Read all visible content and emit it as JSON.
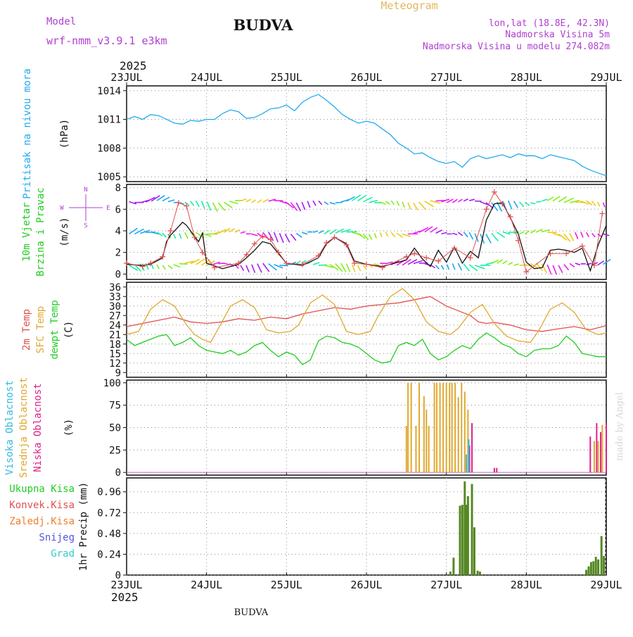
{
  "header": {
    "model_label": "Model",
    "model_name": "wrf-nmm_v3.9.1  e3km",
    "station": "BUDVA",
    "product": "Meteogram",
    "coords": "lon,lat (18.8E, 42.3N)",
    "elevation": "Nadmorska Visina 5m",
    "model_elevation": "Nadmorska Visina u modelu 274.082m",
    "footer_station": "BUDVA",
    "credit": "made by Angel"
  },
  "colors": {
    "pressure": "#22aaee",
    "wind_label": "#22cc22",
    "temp2m": "#e05050",
    "sfc": "#e0a830",
    "dewpt": "#22cc22",
    "high_cloud": "#33bbdd",
    "mid_cloud": "#e0a830",
    "low_cloud": "#dd2288",
    "total_precip": "#558822",
    "purple": "#b040d0"
  },
  "chart_data": {
    "type": "line",
    "time_axis": {
      "year": "2025",
      "ticks": [
        "23JUL",
        "24JUL",
        "25JUL",
        "26JUL",
        "27JUL",
        "28JUL",
        "29JUL"
      ],
      "unit": "days since 23JUL 00UTC"
    },
    "panels": [
      {
        "id": "pressure",
        "labels": [
          "Pritisak na nivou mora"
        ],
        "unit": "(hPa)",
        "ylim": [
          1004.5,
          1014.5
        ],
        "yticks": [
          1005,
          1008,
          1011,
          1014
        ],
        "series": [
          {
            "name": "mslp",
            "x": [
              0,
              0.1,
              0.2,
              0.3,
              0.4,
              0.5,
              0.6,
              0.7,
              0.8,
              0.9,
              1,
              1.1,
              1.2,
              1.3,
              1.4,
              1.5,
              1.6,
              1.7,
              1.8,
              1.9,
              2,
              2.1,
              2.2,
              2.3,
              2.4,
              2.5,
              2.6,
              2.7,
              2.8,
              2.9,
              3,
              3.1,
              3.2,
              3.3,
              3.4,
              3.5,
              3.6,
              3.7,
              3.8,
              3.9,
              4,
              4.1,
              4.2,
              4.3,
              4.4,
              4.5,
              4.6,
              4.7,
              4.8,
              4.9,
              5,
              5.1,
              5.2,
              5.3,
              5.4,
              5.5,
              5.6,
              5.7,
              5.8,
              5.9,
              6
            ],
            "y": [
              1011,
              1011.3,
              1011,
              1011.5,
              1011.4,
              1011,
              1010.6,
              1010.5,
              1010.9,
              1010.8,
              1011,
              1011,
              1011.6,
              1012,
              1011.8,
              1011.1,
              1011.2,
              1011.6,
              1012.1,
              1012.2,
              1012.5,
              1011.9,
              1012.8,
              1013.3,
              1013.6,
              1013,
              1012.3,
              1011.5,
              1011,
              1010.6,
              1010.8,
              1010.6,
              1010,
              1009.4,
              1008.5,
              1008,
              1007.4,
              1007.5,
              1007,
              1006.6,
              1006.4,
              1006.6,
              1006,
              1006.9,
              1007.2,
              1006.9,
              1007.1,
              1007.3,
              1007,
              1007.4,
              1007.2,
              1007.2,
              1006.9,
              1007.3,
              1007.1,
              1006.9,
              1006.7,
              1006.1,
              1005.7,
              1005.4,
              1005.1
            ]
          }
        ]
      },
      {
        "id": "wind",
        "labels": [
          "10m Vjetar",
          "Brzina i Pravac"
        ],
        "unit": "(m/s)",
        "ylim": [
          -0.5,
          8.3
        ],
        "yticks": [
          0,
          2,
          4,
          6,
          8
        ],
        "compass": {
          "n": "N",
          "s": "S",
          "w": "W",
          "e": "E"
        },
        "series": [
          {
            "name": "wind_speed",
            "x": [
              0,
              0.2,
              0.3,
              0.45,
              0.5,
              0.55,
              0.6,
              0.7,
              0.75,
              0.8,
              0.9,
              0.95,
              1,
              1.2,
              1.4,
              1.5,
              1.6,
              1.7,
              1.8,
              2,
              2.2,
              2.4,
              2.5,
              2.6,
              2.75,
              2.85,
              3,
              3.2,
              3.5,
              3.6,
              3.7,
              3.8,
              3.9,
              4,
              4.1,
              4.2,
              4.3,
              4.4,
              4.5,
              4.6,
              4.7,
              4.8,
              4.9,
              5,
              5.1,
              5.2,
              5.3,
              5.4,
              5.5,
              5.6,
              5.7,
              5.8,
              5.9,
              6
            ],
            "y": [
              0.9,
              0.8,
              0.9,
              1.5,
              3,
              3.6,
              4,
              4.8,
              4.5,
              4,
              3,
              3.8,
              1,
              0.5,
              0.9,
              1.5,
              2.2,
              3,
              2.8,
              1,
              0.8,
              1.5,
              2.8,
              3.4,
              2.8,
              1.2,
              0.9,
              0.7,
              1.3,
              2.4,
              1.4,
              0.7,
              2.2,
              1.1,
              2.5,
              1,
              2.1,
              1.5,
              5,
              6.5,
              6.6,
              5.2,
              3.7,
              1.1,
              0.5,
              0.6,
              2.2,
              2.3,
              2.2,
              2,
              2.4,
              0.3,
              2.7,
              4.5
            ]
          },
          {
            "name": "wind_markers",
            "x": [
              0,
              0.2,
              0.3,
              0.45,
              0.55,
              0.65,
              0.75,
              0.85,
              0.95,
              1.1,
              1.4,
              1.5,
              1.6,
              1.7,
              1.8,
              1.9,
              2,
              2.2,
              2.4,
              2.5,
              2.6,
              2.75,
              2.85,
              3,
              3.2,
              3.5,
              3.6,
              3.75,
              3.9,
              4.1,
              4.3,
              4.5,
              4.6,
              4.7,
              4.8,
              4.9,
              5,
              5.3,
              5.5,
              5.7,
              5.85,
              5.95
            ],
            "y": [
              1,
              0.7,
              1,
              1.6,
              4,
              6.6,
              6.3,
              3.4,
              2,
              0.6,
              1,
              1.8,
              2.8,
              3.5,
              3.2,
              2,
              1,
              0.9,
              1.7,
              2.9,
              3.4,
              2.7,
              1,
              0.9,
              0.6,
              1.6,
              1.9,
              1.5,
              1.2,
              2.4,
              1.5,
              6,
              7.6,
              6.5,
              5.3,
              3.1,
              0.2,
              1.9,
              1.9,
              2.6,
              0.8,
              5.6
            ]
          }
        ]
      },
      {
        "id": "temperature",
        "labels": [
          "2m Temp",
          "SFC Temp",
          "dewpt Temp"
        ],
        "unit": "(C)",
        "ylim": [
          7.5,
          37.5
        ],
        "yticks": [
          9,
          12,
          15,
          18,
          21,
          24,
          27,
          30,
          33,
          36
        ],
        "series": [
          {
            "name": "t2m",
            "x": [
              0,
              0.2,
              0.4,
              0.6,
              0.8,
              1,
              1.2,
              1.4,
              1.6,
              1.8,
              2,
              2.2,
              2.4,
              2.6,
              2.8,
              3,
              3.2,
              3.4,
              3.6,
              3.8,
              4,
              4.1,
              4.2,
              4.3,
              4.4,
              4.5,
              4.6,
              4.8,
              5,
              5.2,
              5.4,
              5.6,
              5.8,
              6
            ],
            "y": [
              23.5,
              24.5,
              25.5,
              26.5,
              25,
              24.5,
              25,
              26,
              25.5,
              26.5,
              26,
              27.5,
              28.5,
              29.5,
              29,
              30,
              30.5,
              31,
              32,
              33,
              30,
              29,
              28,
              27,
              25,
              24.5,
              24.8,
              24,
              22.5,
              22,
              22.8,
              23.5,
              22.5,
              23.8
            ]
          },
          {
            "name": "tsfc",
            "x": [
              0,
              0.15,
              0.3,
              0.45,
              0.6,
              0.75,
              0.85,
              0.95,
              1.05,
              1.15,
              1.3,
              1.45,
              1.6,
              1.75,
              1.9,
              2.05,
              2.15,
              2.3,
              2.45,
              2.6,
              2.75,
              2.9,
              3.05,
              3.15,
              3.3,
              3.45,
              3.6,
              3.75,
              3.9,
              4.05,
              4.15,
              4.3,
              4.45,
              4.6,
              4.75,
              4.9,
              5.05,
              5.15,
              5.3,
              5.45,
              5.6,
              5.75,
              5.9,
              6
            ],
            "y": [
              21,
              22,
              29,
              32,
              30,
              24,
              21,
              19.5,
              18.5,
              23,
              30,
              32,
              29.5,
              22.5,
              21.5,
              22,
              24,
              31,
              33.5,
              30.5,
              22,
              21,
              22,
              27,
              33,
              35.5,
              32,
              25,
              22,
              21,
              23,
              28,
              30.5,
              24.5,
              20.5,
              19,
              18.5,
              22,
              29,
              31,
              28,
              22.5,
              21,
              21.5
            ]
          },
          {
            "name": "dewpt",
            "x": [
              0,
              0.1,
              0.2,
              0.3,
              0.4,
              0.5,
              0.6,
              0.7,
              0.8,
              0.9,
              1,
              1.1,
              1.2,
              1.3,
              1.4,
              1.5,
              1.6,
              1.7,
              1.8,
              1.9,
              2,
              2.1,
              2.2,
              2.3,
              2.4,
              2.5,
              2.6,
              2.7,
              2.8,
              2.9,
              3,
              3.1,
              3.2,
              3.3,
              3.4,
              3.5,
              3.6,
              3.7,
              3.8,
              3.9,
              4,
              4.1,
              4.2,
              4.3,
              4.4,
              4.5,
              4.6,
              4.7,
              4.8,
              4.9,
              5,
              5.1,
              5.2,
              5.3,
              5.4,
              5.5,
              5.6,
              5.7,
              5.8,
              5.9,
              6
            ],
            "y": [
              19.5,
              17.5,
              18.5,
              19.5,
              20.5,
              21,
              17.5,
              18.5,
              20,
              17.5,
              16,
              15.5,
              15,
              16,
              14.5,
              15.5,
              17.5,
              18.5,
              16,
              14,
              15.5,
              14.5,
              11.5,
              13,
              19,
              20.5,
              20,
              18.5,
              18,
              17,
              15,
              13,
              12,
              12.5,
              17.5,
              18.5,
              17.5,
              19.5,
              15,
              13,
              14,
              16,
              17.5,
              16.5,
              19.5,
              21.5,
              20,
              18,
              17,
              15,
              14,
              16,
              16.5,
              16.5,
              17.5,
              20.5,
              18.5,
              15,
              14.5,
              14,
              14
            ]
          }
        ]
      },
      {
        "id": "cloud",
        "labels": [
          "Visoka Oblacnost",
          "Srednja Oblacnost",
          "Niska Oblacnost"
        ],
        "unit": "(%)",
        "ylim": [
          -3,
          103
        ],
        "yticks": [
          0,
          25,
          50,
          75,
          100
        ],
        "series": [
          {
            "name": "mid_cloud",
            "x": [
              3.5,
              3.52,
              3.56,
              3.62,
              3.66,
              3.72,
              3.75,
              3.78,
              3.85,
              3.88,
              3.92,
              3.96,
              4,
              4.04,
              4.07,
              4.11,
              4.15,
              4.19,
              4.23,
              4.27,
              5.85,
              5.9,
              5.95
            ],
            "y": [
              52,
              100,
              100,
              52,
              100,
              85,
              70,
              52,
              100,
              100,
              100,
              100,
              100,
              100,
              100,
              100,
              84,
              100,
              90,
              70,
              35,
              35,
              53
            ]
          },
          {
            "name": "low_cloud",
            "x": [
              4.29,
              4.32,
              4.6,
              4.63,
              5.8,
              5.88,
              5.93,
              6
            ],
            "y": [
              30,
              55,
              5,
              5,
              40,
              55,
              45,
              55
            ]
          },
          {
            "name": "high_cloud",
            "x": [
              4.25,
              4.28
            ],
            "y": [
              20,
              37
            ]
          }
        ]
      },
      {
        "id": "precip",
        "labels": [
          "Ukupna Kisa",
          "Konvek.Kisa",
          "Zaledj.Kisa",
          "Snijeg",
          "Grad"
        ],
        "unit": "1hr Precip (mm)",
        "ylim": [
          0,
          1.12
        ],
        "yticks": [
          0,
          0.24,
          0.48,
          0.72,
          0.96
        ],
        "series": [
          {
            "name": "total_precip",
            "x": [
              4.05,
              4.09,
              4.17,
              4.2,
              4.23,
              4.25,
              4.27,
              4.32,
              4.35,
              4.39,
              4.42,
              5.75,
              5.78,
              5.81,
              5.84,
              5.87,
              5.9,
              5.94,
              5.97
            ],
            "y": [
              0.04,
              0.2,
              0.8,
              0.81,
              1.08,
              0.81,
              0.91,
              1.05,
              0.55,
              0.05,
              0.04,
              0.06,
              0.1,
              0.15,
              0.16,
              0.21,
              0.18,
              0.45,
              0.22
            ]
          }
        ]
      }
    ]
  }
}
